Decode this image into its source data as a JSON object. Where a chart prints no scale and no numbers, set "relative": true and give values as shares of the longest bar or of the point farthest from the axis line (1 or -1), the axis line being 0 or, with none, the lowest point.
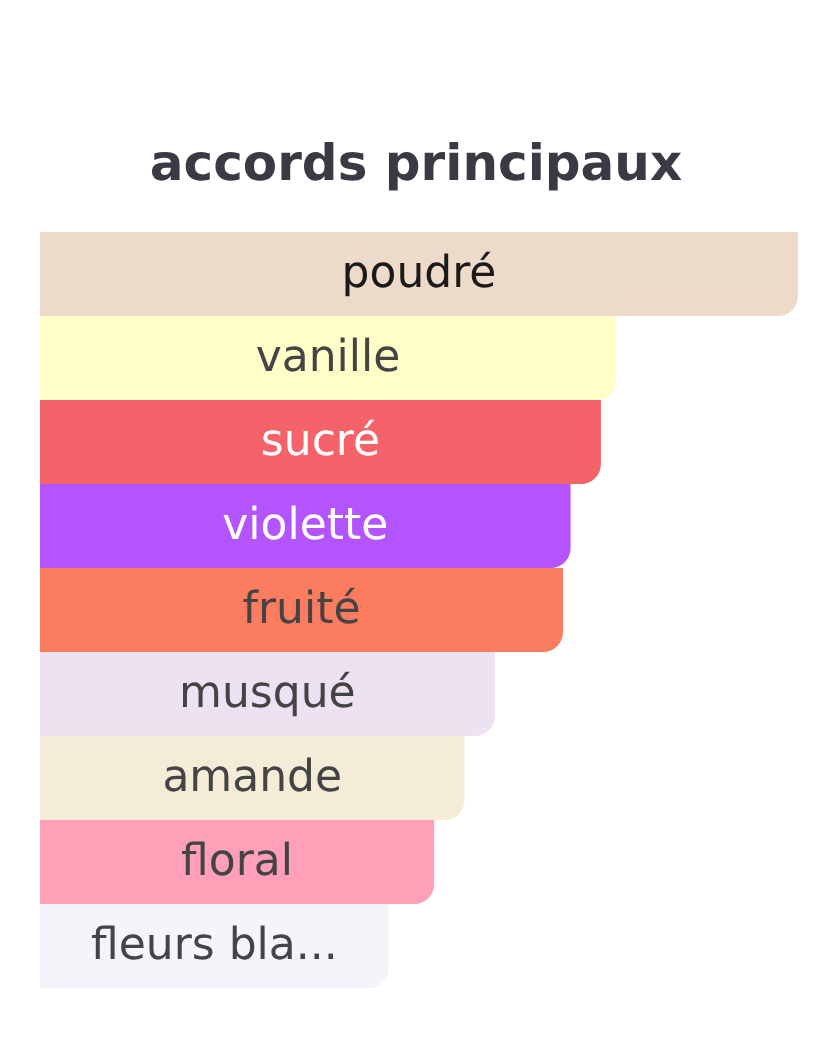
{
  "chart_data": {
    "type": "bar",
    "title": "accords principaux",
    "orientation": "horizontal",
    "relative": true,
    "categories": [
      "poudré",
      "vanille",
      "sucré",
      "violette",
      "fruité",
      "musqué",
      "amande",
      "floral",
      "fleurs bla..."
    ],
    "values": [
      1,
      0.76,
      0.74,
      0.7,
      0.69,
      0.6,
      0.56,
      0.52,
      0.46
    ],
    "colors": [
      "#eedac8",
      "#fffdc8",
      "#f4636a",
      "#b454ff",
      "#fc7c5f",
      "#ede2f1",
      "#f5ecd8",
      "#ff9fb8",
      "#f4f5fb"
    ]
  }
}
